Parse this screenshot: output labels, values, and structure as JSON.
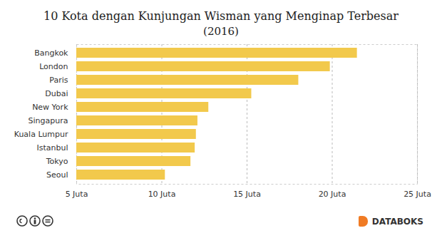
{
  "chart_data": {
    "type": "bar",
    "orientation": "horizontal",
    "title": "10 Kota dengan Kunjungan Wisman yang Menginap Terbesar",
    "subtitle": "(2016)",
    "categories": [
      "Bangkok",
      "London",
      "Paris",
      "Dubai",
      "New York",
      "Singapura",
      "Kuala Lumpur",
      "Istanbul",
      "Tokyo",
      "Seoul"
    ],
    "values": [
      21.47,
      19.88,
      18.03,
      15.27,
      12.75,
      12.11,
      12.02,
      11.95,
      11.7,
      10.2
    ],
    "color": "#f2c94c",
    "xlim": [
      5,
      25
    ],
    "xticks": [
      {
        "value": 5,
        "label": "5 Juta"
      },
      {
        "value": 10,
        "label": "10 Juta"
      },
      {
        "value": 15,
        "label": "15 Juta"
      },
      {
        "value": 20,
        "label": "20 Juta"
      },
      {
        "value": 25,
        "label": "25 Juta"
      }
    ],
    "grid": true,
    "credit": "DATABOKS"
  }
}
